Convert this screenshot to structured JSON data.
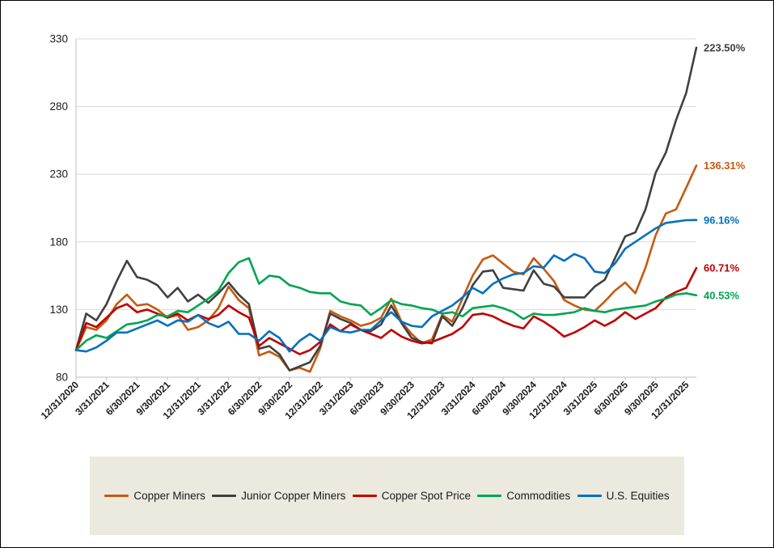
{
  "chart_data": {
    "type": "line",
    "title": "",
    "xlabel": "",
    "ylabel": "",
    "ylim": [
      80,
      330
    ],
    "y_ticks": [
      80,
      130,
      180,
      230,
      280,
      330
    ],
    "grid": "horizontal",
    "legend_position": "bottom",
    "points_per_tick": 3,
    "x_tick_labels": [
      "12/31/2020",
      "3/31/2021",
      "6/30/2021",
      "9/30/2021",
      "12/31/2021",
      "3/31/2022",
      "6/30/2022",
      "9/30/2022",
      "12/31/2022",
      "3/31/2023",
      "6/30/2023",
      "9/30/2023",
      "12/31/2023",
      "3/31/2024",
      "6/30/2024",
      "9/30/2024",
      "12/31/2024",
      "3/31/2025",
      "6/30/2025",
      "9/30/2025",
      "12/31/2025"
    ],
    "series": [
      {
        "name": "Copper Miners",
        "color": "#C55A11",
        "end_label": "136.31%",
        "final_value": 236.31,
        "values": [
          100,
          117,
          115,
          122,
          134,
          141,
          133,
          134,
          130,
          124,
          126,
          115,
          117,
          122,
          131,
          147,
          137,
          131,
          96,
          99,
          95,
          85,
          87,
          84,
          101,
          129,
          125,
          122,
          118,
          120,
          124,
          138,
          121,
          112,
          105,
          108,
          126,
          121,
          138,
          155,
          167,
          170,
          164,
          158,
          156,
          168,
          160,
          151,
          137,
          133,
          130,
          129,
          136,
          144,
          150,
          142,
          161,
          185,
          201,
          204,
          220,
          236.31
        ]
      },
      {
        "name": "Junior Copper Miners",
        "color": "#404040",
        "end_label": "223.50%",
        "final_value": 323.5,
        "values": [
          100,
          127,
          122,
          134,
          151,
          166,
          154,
          152,
          148,
          139,
          146,
          136,
          141,
          135,
          142,
          150,
          141,
          134,
          101,
          103,
          97,
          85,
          88,
          91,
          103,
          127,
          123,
          120,
          115,
          114,
          119,
          133,
          120,
          109,
          106,
          105,
          125,
          118,
          131,
          148,
          158,
          159,
          146,
          145,
          144,
          159,
          149,
          147,
          139,
          139,
          139,
          147,
          152,
          168,
          184,
          187,
          204,
          231,
          246,
          270,
          290,
          323.5
        ]
      },
      {
        "name": "Copper Spot Price",
        "color": "#C00000",
        "end_label": "60.71%",
        "final_value": 160.71,
        "values": [
          100,
          120,
          117,
          124,
          131,
          134,
          128,
          130,
          127,
          124,
          127,
          122,
          126,
          123,
          126,
          133,
          128,
          124,
          103,
          109,
          105,
          101,
          97,
          100,
          106,
          119,
          114,
          119,
          115,
          112,
          109,
          115,
          110,
          107,
          105,
          106,
          109,
          112,
          117,
          126,
          127,
          125,
          121,
          118,
          116,
          125,
          121,
          116,
          110,
          113,
          117,
          122,
          118,
          122,
          128,
          123,
          127,
          131,
          139,
          143,
          146,
          160.71
        ]
      },
      {
        "name": "Commodities",
        "color": "#00A550",
        "end_label": "40.53%",
        "final_value": 140.53,
        "values": [
          100,
          107,
          111,
          109,
          114,
          119,
          120,
          122,
          126,
          125,
          129,
          128,
          133,
          138,
          144,
          157,
          165,
          168,
          149,
          155,
          154,
          148,
          146,
          143,
          142,
          142,
          136,
          134,
          133,
          126,
          131,
          137,
          134,
          133,
          131,
          130,
          127,
          128,
          125,
          131,
          132,
          133,
          131,
          128,
          123,
          127,
          126,
          126,
          127,
          128,
          131,
          129,
          128,
          130,
          131,
          132,
          133,
          136,
          138,
          141,
          142,
          140.53
        ]
      },
      {
        "name": "U.S. Equities",
        "color": "#0070C0",
        "end_label": "96.16%",
        "final_value": 196.16,
        "values": [
          100,
          99,
          102,
          107,
          113,
          113,
          116,
          119,
          122,
          118,
          122,
          121,
          126,
          120,
          117,
          121,
          112,
          112,
          107,
          114,
          109,
          99,
          107,
          112,
          107,
          117,
          114,
          113,
          115,
          115,
          122,
          128,
          121,
          118,
          117,
          125,
          129,
          133,
          139,
          146,
          142,
          149,
          153,
          156,
          157,
          162,
          161,
          170,
          166,
          171,
          168,
          158,
          157,
          164,
          175,
          180,
          185,
          190,
          194,
          195,
          196,
          196.16
        ]
      }
    ]
  },
  "legend": {
    "background": "#ECE9DF",
    "items": [
      "Copper Miners",
      "Junior Copper Miners",
      "Copper Spot Price",
      "Commodities",
      "U.S. Equities"
    ]
  },
  "style_colors": {
    "gridline": "#D9D9D9",
    "axis_line": "#BFBFBF",
    "tick_label": "#1a1a1a",
    "background": "#FFFFFF"
  }
}
